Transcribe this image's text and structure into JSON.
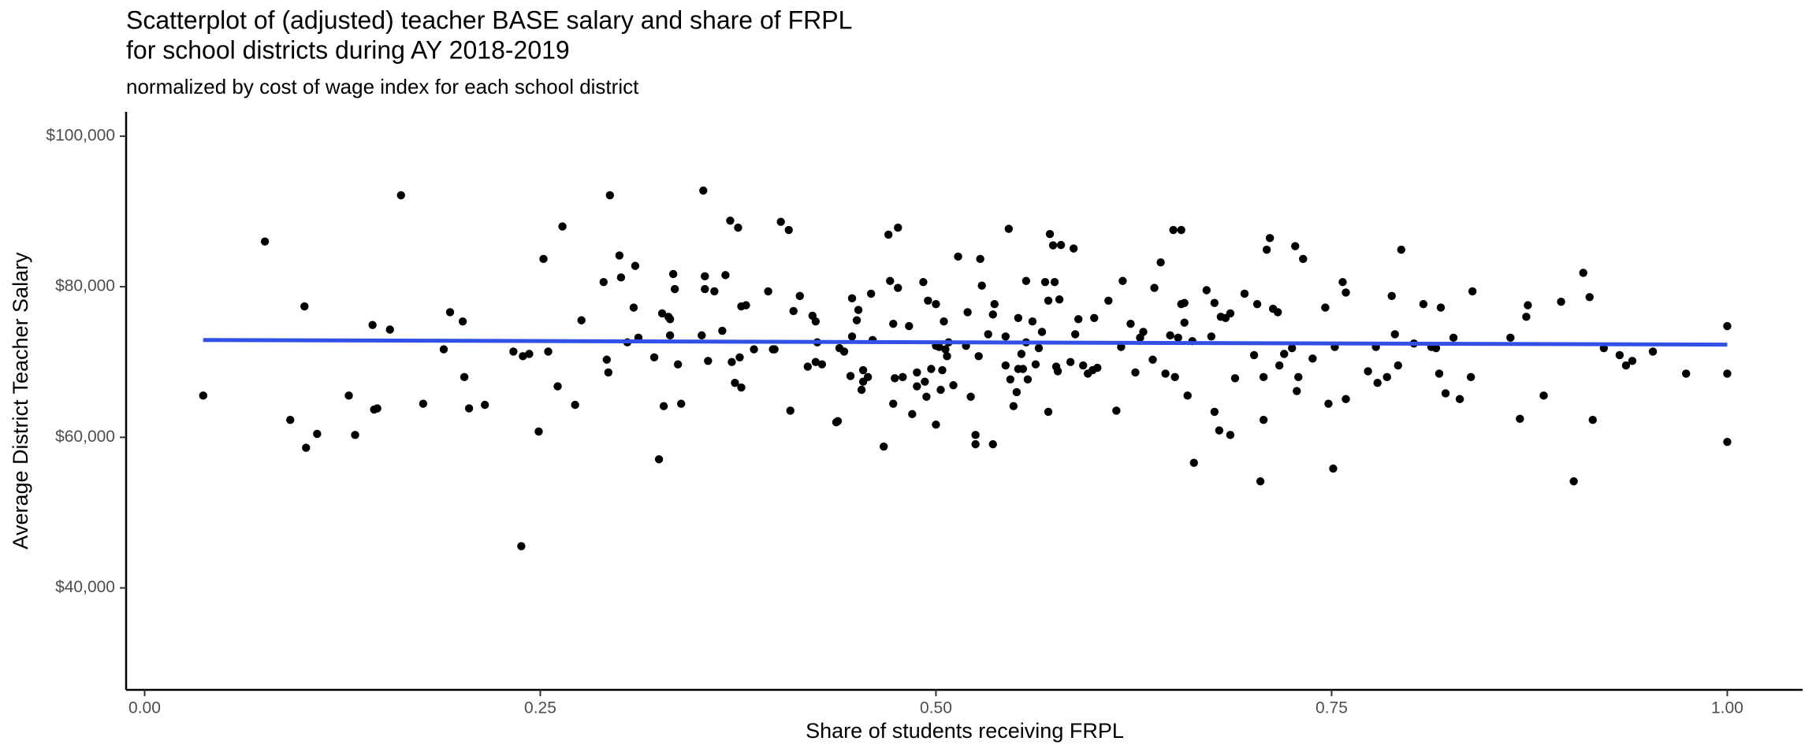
{
  "chart_data": {
    "type": "scatter",
    "title": [
      "Scatterplot of (adjusted) teacher BASE salary and share of FRPL",
      "for school districts during AY 2018-2019"
    ],
    "subtitle": "normalized by cost of wage index for each school district",
    "x_label": "Share of students receiving FRPL",
    "y_label": "Average District Teacher Salary",
    "color": "#000000",
    "x": [
      0.037,
      0.076,
      0.092,
      0.101,
      0.102,
      0.109,
      0.129,
      0.133,
      0.144,
      0.145,
      0.147,
      0.155,
      0.162,
      0.176,
      0.189,
      0.193,
      0.201,
      0.202,
      0.205,
      0.215,
      0.233,
      0.238,
      0.239,
      0.243,
      0.249,
      0.252,
      0.255,
      0.261,
      0.264,
      0.272,
      0.276,
      0.29,
      0.292,
      0.293,
      0.294,
      0.3,
      0.301,
      0.305,
      0.309,
      0.31,
      0.312,
      0.322,
      0.325,
      0.327,
      0.328,
      0.331,
      0.332,
      0.332,
      0.334,
      0.335,
      0.337,
      0.339,
      0.352,
      0.353,
      0.354,
      0.354,
      0.356,
      0.36,
      0.365,
      0.367,
      0.37,
      0.371,
      0.373,
      0.375,
      0.376,
      0.377,
      0.377,
      0.38,
      0.385,
      0.394,
      0.397,
      0.398,
      0.402,
      0.407,
      0.408,
      0.41,
      0.414,
      0.419,
      0.422,
      0.424,
      0.424,
      0.425,
      0.428,
      0.437,
      0.438,
      0.439,
      0.442,
      0.446,
      0.447,
      0.447,
      0.45,
      0.451,
      0.453,
      0.454,
      0.454,
      0.457,
      0.459,
      0.46,
      0.467,
      0.47,
      0.471,
      0.473,
      0.473,
      0.474,
      0.476,
      0.476,
      0.479,
      0.483,
      0.485,
      0.488,
      0.488,
      0.492,
      0.493,
      0.494,
      0.495,
      0.497,
      0.5,
      0.5,
      0.5,
      0.502,
      0.503,
      0.504,
      0.505,
      0.506,
      0.507,
      0.508,
      0.511,
      0.514,
      0.519,
      0.52,
      0.522,
      0.525,
      0.525,
      0.527,
      0.528,
      0.529,
      0.533,
      0.536,
      0.536,
      0.537,
      0.544,
      0.544,
      0.546,
      0.547,
      0.549,
      0.551,
      0.552,
      0.552,
      0.554,
      0.555,
      0.557,
      0.557,
      0.558,
      0.561,
      0.563,
      0.565,
      0.567,
      0.569,
      0.571,
      0.571,
      0.572,
      0.574,
      0.575,
      0.576,
      0.577,
      0.578,
      0.579,
      0.585,
      0.587,
      0.588,
      0.59,
      0.593,
      0.596,
      0.599,
      0.6,
      0.602,
      0.609,
      0.614,
      0.617,
      0.618,
      0.623,
      0.626,
      0.629,
      0.631,
      0.637,
      0.638,
      0.642,
      0.645,
      0.648,
      0.65,
      0.651,
      0.653,
      0.655,
      0.655,
      0.657,
      0.657,
      0.659,
      0.662,
      0.663,
      0.671,
      0.674,
      0.676,
      0.676,
      0.679,
      0.68,
      0.683,
      0.686,
      0.686,
      0.689,
      0.695,
      0.701,
      0.703,
      0.705,
      0.707,
      0.707,
      0.709,
      0.711,
      0.713,
      0.716,
      0.717,
      0.72,
      0.725,
      0.727,
      0.728,
      0.729,
      0.732,
      0.738,
      0.746,
      0.748,
      0.751,
      0.752,
      0.757,
      0.759,
      0.759,
      0.773,
      0.778,
      0.779,
      0.785,
      0.788,
      0.79,
      0.792,
      0.794,
      0.802,
      0.808,
      0.813,
      0.816,
      0.818,
      0.819,
      0.822,
      0.827,
      0.831,
      0.838,
      0.839,
      0.863,
      0.869,
      0.873,
      0.874,
      0.884,
      0.895,
      0.903,
      0.909,
      0.913,
      0.915,
      0.922,
      0.932,
      0.936,
      0.94,
      0.953,
      0.974,
      1.0,
      1.0,
      1.0
    ],
    "values": [
      65540,
      86000,
      62310,
      77390,
      58620,
      60460,
      65540,
      60310,
      74920,
      63690,
      63850,
      74310,
      92150,
      64460,
      71690,
      76620,
      75390,
      68000,
      63850,
      64310,
      71390,
      45540,
      70770,
      71080,
      60770,
      83690,
      71390,
      66770,
      88000,
      64310,
      75540,
      80620,
      70310,
      68620,
      92150,
      84150,
      81230,
      72620,
      77230,
      82770,
      73230,
      70620,
      57080,
      76460,
      64150,
      76000,
      75690,
      73540,
      81690,
      79690,
      69690,
      64460,
      73540,
      92770,
      81390,
      79690,
      70150,
      79390,
      74150,
      81540,
      88770,
      70000,
      67230,
      87850,
      70620,
      66620,
      77390,
      77540,
      71690,
      79390,
      71690,
      71690,
      88620,
      87540,
      63540,
      76770,
      78770,
      69390,
      76150,
      75390,
      70000,
      72620,
      69690,
      62000,
      62150,
      71850,
      71390,
      68150,
      78460,
      73390,
      75540,
      76920,
      66310,
      67390,
      68920,
      68000,
      79080,
      72920,
      58770,
      86920,
      80770,
      64460,
      75080,
      67850,
      87850,
      79850,
      68000,
      74770,
      63080,
      68620,
      66770,
      80620,
      67390,
      65390,
      78150,
      69080,
      77690,
      72150,
      61690,
      72000,
      66310,
      68920,
      75390,
      71690,
      70770,
      72620,
      66920,
      84000,
      72150,
      76620,
      65390,
      59080,
      60310,
      70770,
      83690,
      80150,
      73690,
      59080,
      76310,
      77690,
      69540,
      73390,
      87690,
      67690,
      64150,
      66000,
      69080,
      75850,
      71080,
      69080,
      72620,
      80770,
      67690,
      75390,
      69690,
      71850,
      74000,
      80620,
      78150,
      63390,
      87000,
      85500,
      80620,
      69390,
      68770,
      78310,
      85540,
      70000,
      85080,
      73690,
      75690,
      69540,
      68460,
      68920,
      75850,
      69230,
      78150,
      63540,
      72000,
      80770,
      75080,
      68620,
      73230,
      74000,
      70310,
      79850,
      83230,
      68460,
      73540,
      87540,
      68000,
      73230,
      87540,
      77690,
      77850,
      75230,
      65540,
      72770,
      56620,
      79540,
      73390,
      77850,
      63390,
      60920,
      76000,
      75850,
      76460,
      60310,
      67850,
      79080,
      70920,
      77690,
      54150,
      62310,
      68000,
      84920,
      86460,
      77080,
      76620,
      69540,
      71080,
      71850,
      85390,
      66150,
      68000,
      83690,
      70460,
      77230,
      64460,
      55850,
      72000,
      80620,
      65080,
      79230,
      68770,
      72000,
      67230,
      68000,
      78770,
      73690,
      69540,
      84920,
      72460,
      77690,
      72000,
      71850,
      68460,
      77230,
      65850,
      73230,
      65080,
      68000,
      79390,
      73230,
      62460,
      76000,
      77540,
      65540,
      78000,
      54150,
      81850,
      78620,
      62310,
      71850,
      70920,
      69540,
      70150,
      71390,
      68460,
      74770,
      68460,
      59390
    ],
    "trend": {
      "x": [
        0.037,
        1.0
      ],
      "values": [
        72920,
        72310
      ],
      "color": "#3050e8"
    },
    "xlim": [
      -0.0117,
      1.0476
    ],
    "ylim": [
      26460,
      103230
    ],
    "xticks": [
      {
        "value": 0,
        "label": "0.00"
      },
      {
        "value": 0.25,
        "label": "0.25"
      },
      {
        "value": 0.5,
        "label": "0.50"
      },
      {
        "value": 0.75,
        "label": "0.75"
      },
      {
        "value": 1,
        "label": "1.00"
      }
    ],
    "yticks": [
      {
        "value": 40000,
        "label": "$40,000"
      },
      {
        "value": 60000,
        "label": "$60,000"
      },
      {
        "value": 80000,
        "label": "$80,000"
      },
      {
        "value": 100000,
        "label": "$100,000"
      }
    ],
    "grid": false
  }
}
